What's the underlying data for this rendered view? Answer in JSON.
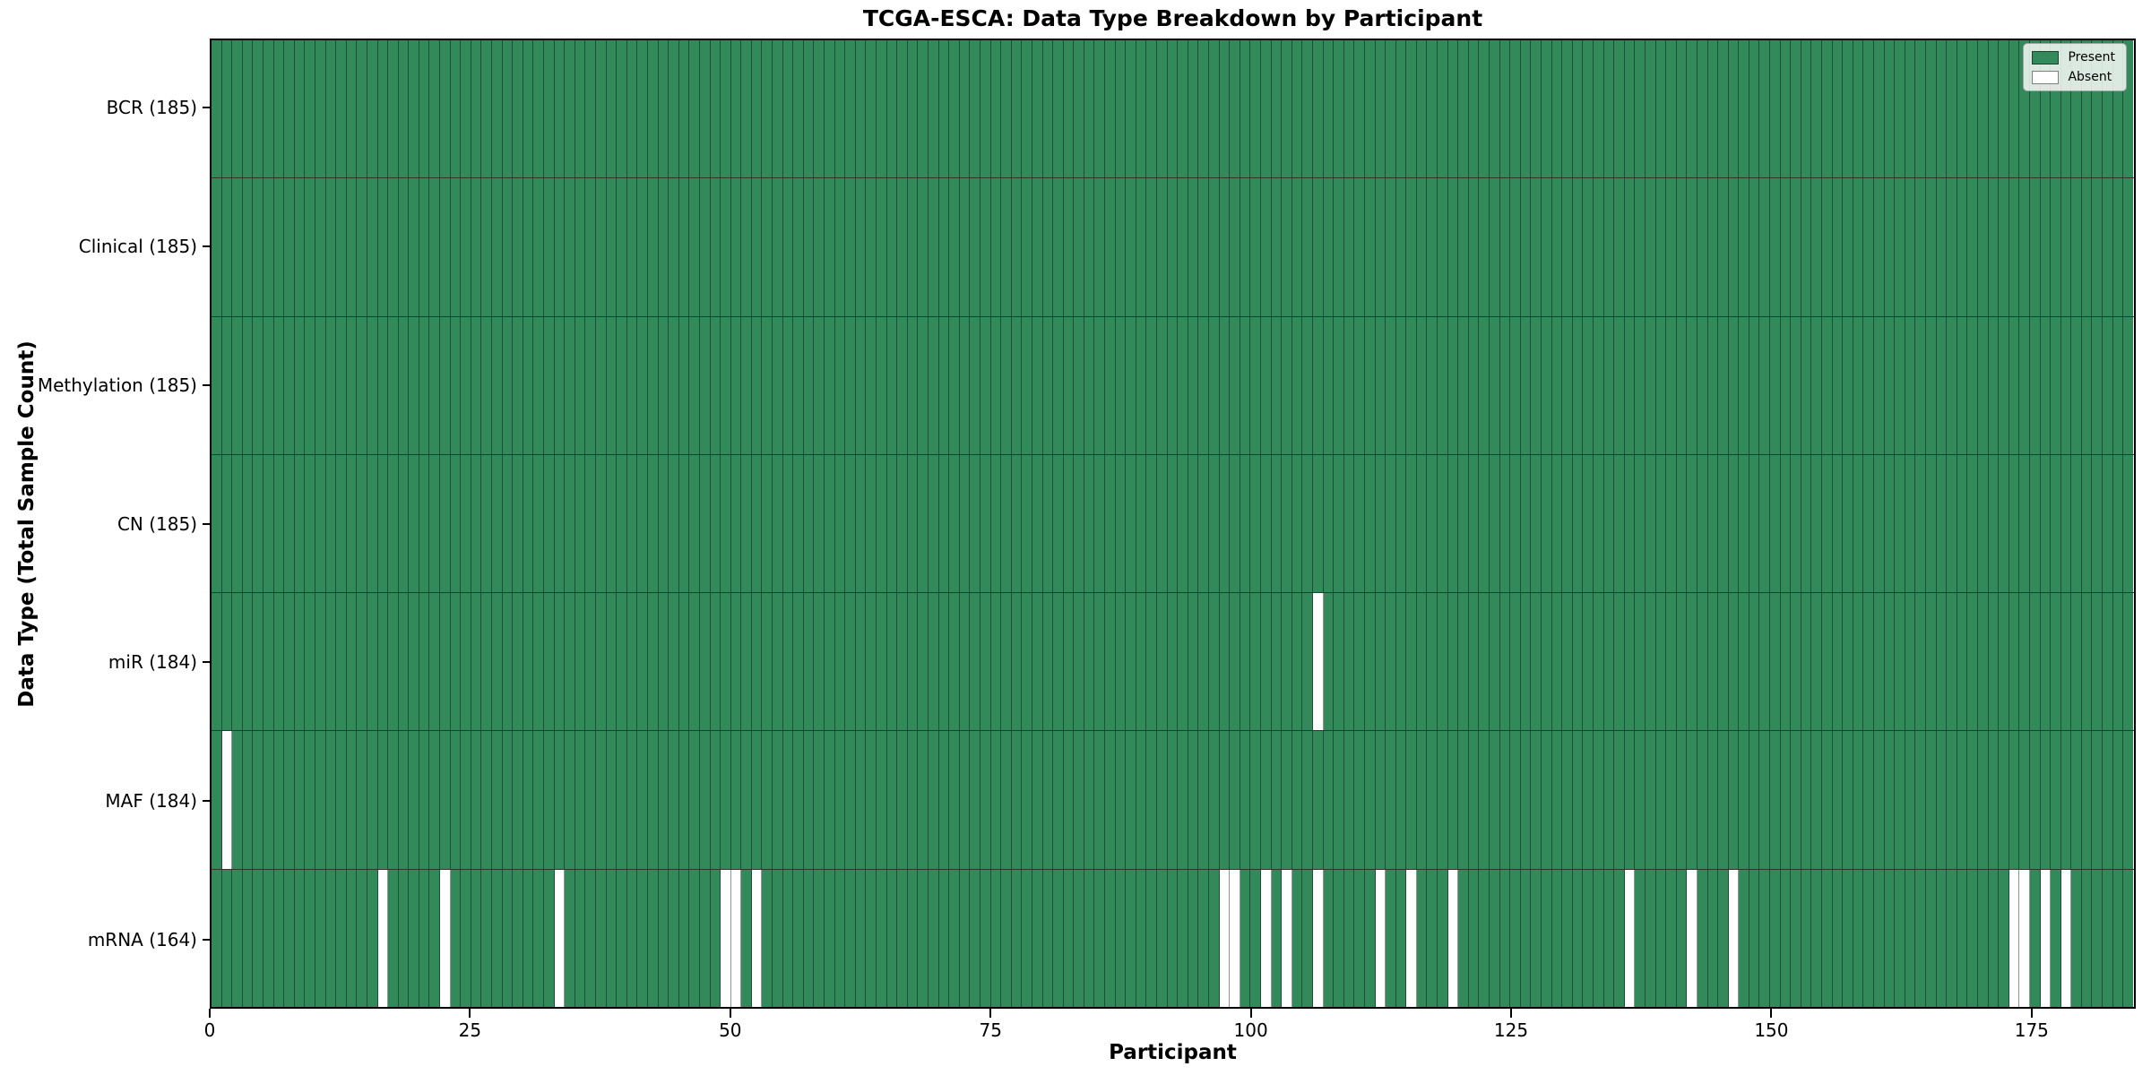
{
  "chart_data": {
    "type": "heatmap",
    "title": "TCGA-ESCA: Data Type Breakdown by Participant",
    "xlabel": "Participant",
    "ylabel": "Data Type (Total Sample Count)",
    "n_participants": 185,
    "x_axis_range": [
      0,
      185
    ],
    "x_ticks": [
      0,
      25,
      50,
      75,
      100,
      125,
      150,
      175
    ],
    "legend": [
      {
        "label": "Present",
        "state": "present"
      },
      {
        "label": "Absent",
        "state": "absent"
      }
    ],
    "colors": {
      "present": "#32895a",
      "absent": "#ffffff",
      "cell_edge": "rgba(0,0,0,0.42)",
      "row_divider": "rgba(0,0,0,0.8)",
      "spine": "#000000",
      "legend_bg": "rgba(255,255,255,0.82)",
      "legend_border": "#a3a3a3"
    },
    "rows": [
      {
        "label": "BCR (185)",
        "data_type": "BCR",
        "total_sample_count": 185,
        "absent_participants": []
      },
      {
        "label": "Clinical (185)",
        "data_type": "Clinical",
        "total_sample_count": 185,
        "absent_participants": []
      },
      {
        "label": "Methylation (185)",
        "data_type": "Methylation",
        "total_sample_count": 185,
        "absent_participants": []
      },
      {
        "label": "CN (185)",
        "data_type": "CN",
        "total_sample_count": 185,
        "absent_participants": []
      },
      {
        "label": "miR (184)",
        "data_type": "miR",
        "total_sample_count": 184,
        "absent_participants": [
          106
        ]
      },
      {
        "label": "MAF (184)",
        "data_type": "MAF",
        "total_sample_count": 184,
        "absent_participants": [
          1
        ]
      },
      {
        "label": "mRNA (164)",
        "data_type": "mRNA",
        "total_sample_count": 164,
        "absent_participants": [
          16,
          22,
          33,
          49,
          50,
          52,
          97,
          98,
          101,
          103,
          106,
          112,
          115,
          119,
          136,
          142,
          146,
          173,
          174,
          176,
          178
        ]
      }
    ]
  }
}
